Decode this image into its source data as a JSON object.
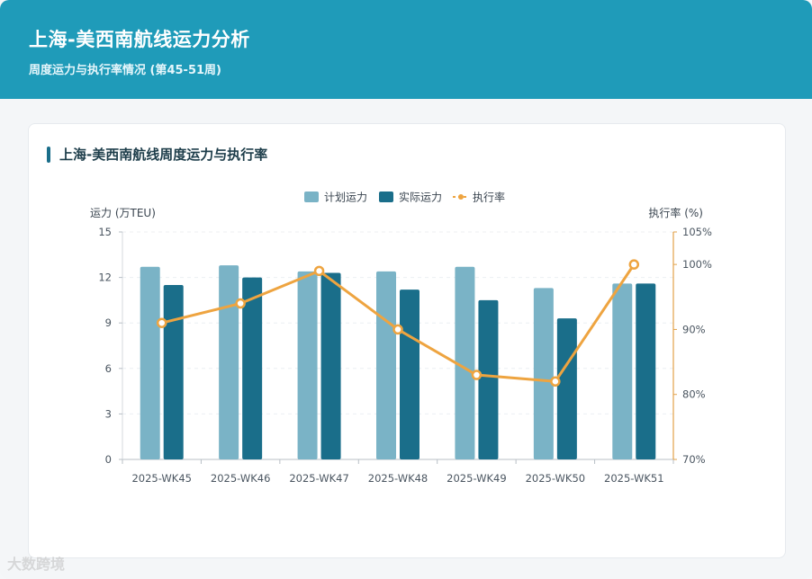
{
  "header": {
    "title": "上海-美西南航线运力分析",
    "subtitle": "周度运力与执行率情况 (第45-51周)"
  },
  "card": {
    "title": "上海-美西南航线周度运力与执行率"
  },
  "watermark": "大数跨境",
  "colors": {
    "header_bg": "#1f9bb9",
    "planned": "#7ab3c6",
    "actual": "#1a6e8a",
    "rate": "#eea440"
  },
  "chart_data": {
    "type": "bar",
    "categories": [
      "2025-WK45",
      "2025-WK46",
      "2025-WK47",
      "2025-WK48",
      "2025-WK49",
      "2025-WK50",
      "2025-WK51"
    ],
    "series": [
      {
        "name": "计划运力",
        "type": "bar",
        "axis": "left",
        "values": [
          12.7,
          12.8,
          12.4,
          12.4,
          12.7,
          11.3,
          11.6
        ]
      },
      {
        "name": "实际运力",
        "type": "bar",
        "axis": "left",
        "values": [
          11.5,
          12.0,
          12.3,
          11.2,
          10.5,
          9.3,
          11.6
        ]
      },
      {
        "name": "执行率",
        "type": "line",
        "axis": "right",
        "values": [
          91,
          94,
          99,
          90,
          83,
          82,
          100
        ]
      }
    ],
    "ylabel": "运力 (万TEU)",
    "y2label": "执行率 (%)",
    "ylim": [
      0,
      15
    ],
    "yticks": [
      0,
      3,
      6,
      9,
      12,
      15
    ],
    "y2lim": [
      70,
      105
    ],
    "y2ticks": [
      70,
      80,
      90,
      100,
      105
    ],
    "y2tick_suffix": "%",
    "legend_position": "top-center",
    "grid": true
  }
}
